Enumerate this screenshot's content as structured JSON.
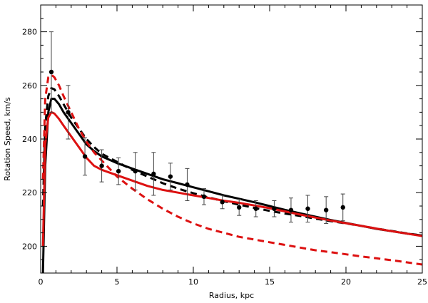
{
  "chart_data": {
    "type": "line",
    "xlabel": "Radius, kpc",
    "ylabel": "Rotation Speed, km/s",
    "xlim": [
      0,
      25
    ],
    "ylim": [
      190,
      290
    ],
    "xticks": [
      0,
      5,
      10,
      15,
      20,
      25
    ],
    "yticks": [
      200,
      220,
      240,
      260,
      280
    ],
    "x_minor_step": 1,
    "y_minor_step": 5,
    "grid": false,
    "legend": "none",
    "series": [
      {
        "color": "#000000",
        "style": "solid",
        "x": [
          0.15,
          0.3,
          0.5,
          0.7,
          0.9,
          1.2,
          1.5,
          2,
          2.5,
          3,
          3.5,
          4,
          5,
          6,
          7,
          8,
          9,
          10,
          11,
          12,
          13,
          14,
          15,
          16,
          17,
          18,
          19,
          20,
          21,
          22,
          23,
          24,
          25
        ],
        "y": [
          190,
          230,
          250,
          255,
          255,
          253,
          250,
          246,
          242,
          238,
          235.5,
          233.5,
          231,
          229,
          227,
          225,
          223.5,
          222,
          220.5,
          219,
          217.7,
          216.4,
          215,
          213.6,
          212.3,
          211,
          209.8,
          208.7,
          207.6,
          206.5,
          205.6,
          204.7,
          204
        ]
      },
      {
        "color": "#000000",
        "style": "dashed",
        "x": [
          0.15,
          0.3,
          0.5,
          0.7,
          0.9,
          1.2,
          1.5,
          2,
          2.5,
          3,
          3.5,
          4,
          5,
          6,
          7,
          8,
          9,
          10,
          11,
          12,
          13,
          14,
          15,
          16,
          17,
          18,
          19,
          20,
          21,
          22,
          23,
          24,
          25
        ],
        "y": [
          215,
          245,
          256,
          259,
          258.5,
          256,
          253,
          248,
          244,
          240,
          237,
          234.5,
          231.5,
          228.5,
          226,
          223.5,
          221.5,
          219.8,
          218.2,
          216.8,
          215.5,
          214.3,
          213.2,
          212.2,
          211.3,
          210.3,
          209.4,
          208.5,
          207.6,
          206.6,
          205.7,
          204.8,
          204
        ]
      },
      {
        "color": "#dd1111",
        "style": "solid",
        "x": [
          0.15,
          0.3,
          0.5,
          0.7,
          0.9,
          1.2,
          1.5,
          2,
          2.5,
          3,
          3.5,
          4,
          5,
          6,
          7,
          8,
          9,
          10,
          11,
          12,
          13,
          14,
          15,
          16,
          17,
          18,
          19,
          20,
          21,
          22,
          23,
          24,
          25
        ],
        "y": [
          200,
          238,
          248,
          250,
          249.5,
          247.5,
          245,
          241,
          237,
          233,
          230,
          228.5,
          226.5,
          224.5,
          222.5,
          221,
          220,
          219,
          218,
          217,
          216.2,
          215.2,
          214.2,
          213,
          211.8,
          210.7,
          209.6,
          208.6,
          207.6,
          206.6,
          205.6,
          204.7,
          203.8
        ]
      },
      {
        "color": "#dd1111",
        "style": "dashed",
        "x": [
          0.15,
          0.3,
          0.5,
          0.7,
          0.9,
          1.2,
          1.5,
          2,
          2.5,
          3,
          3.5,
          4,
          5,
          6,
          7,
          8,
          9,
          10,
          11,
          12,
          13,
          14,
          15,
          16,
          17,
          18,
          19,
          20,
          21,
          22,
          23,
          24,
          25
        ],
        "y": [
          225,
          255,
          263,
          264,
          263,
          260,
          256,
          250,
          244,
          239,
          235,
          232,
          226,
          221.5,
          217.5,
          214,
          211,
          208.5,
          206.5,
          205,
          203.5,
          202.5,
          201.5,
          200.5,
          199.5,
          198.5,
          197.8,
          197,
          196.2,
          195.5,
          194.8,
          194,
          193.2
        ]
      },
      {
        "type": "scatter",
        "color": "#000000",
        "x": [
          0.7,
          1.8,
          2.9,
          4.0,
          5.1,
          6.2,
          7.4,
          8.5,
          9.6,
          10.7,
          11.9,
          13.0,
          14.1,
          15.3,
          16.4,
          17.5,
          18.7,
          19.8
        ],
        "y": [
          265,
          250,
          233.5,
          230,
          228,
          228,
          227,
          226,
          223,
          218.5,
          216.5,
          214.5,
          214,
          214,
          213.5,
          214,
          213.5,
          214.5
        ],
        "err": [
          15,
          10,
          7,
          6,
          5,
          7,
          8,
          5,
          6,
          3,
          2.5,
          3,
          3,
          3,
          4.5,
          5,
          5,
          5
        ]
      }
    ]
  }
}
